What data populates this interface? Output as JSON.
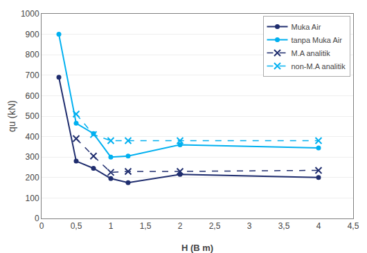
{
  "chart_data": {
    "type": "line",
    "xlabel": "H (B m)",
    "ylabel": "qu (kN)",
    "series": [
      {
        "name": "Muka Air",
        "color": "#1f2d6e",
        "line_style": "solid",
        "marker": "circle",
        "x": [
          0.25,
          0.5,
          0.75,
          1.0,
          1.25,
          2.0,
          4.0
        ],
        "values": [
          690,
          280,
          245,
          195,
          175,
          215,
          200
        ]
      },
      {
        "name": "tanpa Muka Air",
        "color": "#00b0f0",
        "line_style": "solid",
        "marker": "circle",
        "x": [
          0.25,
          0.5,
          0.75,
          1.0,
          1.25,
          2.0,
          4.0
        ],
        "values": [
          900,
          465,
          415,
          300,
          305,
          360,
          345
        ]
      },
      {
        "name": "M.A analitik",
        "color": "#1f2d6e",
        "line_style": "dashed",
        "marker": "x",
        "x": [
          0.5,
          0.75,
          1.0,
          1.25,
          2.0,
          4.0
        ],
        "values": [
          390,
          305,
          225,
          230,
          230,
          235
        ]
      },
      {
        "name": "non-M.A analitik",
        "color": "#00b0f0",
        "line_style": "dashed",
        "marker": "x",
        "x": [
          0.5,
          0.75,
          1.0,
          1.25,
          2.0,
          4.0
        ],
        "values": [
          510,
          410,
          380,
          380,
          380,
          380
        ]
      }
    ],
    "xlim": [
      0,
      4.5
    ],
    "ylim": [
      0,
      1000
    ],
    "xticks": [
      0,
      {
        "value": 0.5,
        "label": "0,5"
      },
      1,
      {
        "value": 1.5,
        "label": "1,5"
      },
      2,
      {
        "value": 2.5,
        "label": "2,5"
      },
      3,
      {
        "value": 3.5,
        "label": "3,5"
      },
      4,
      {
        "value": 4.5,
        "label": "4,5"
      }
    ],
    "yticks": [
      0,
      100,
      200,
      300,
      400,
      500,
      600,
      700,
      800,
      900,
      1000
    ],
    "grid": "y",
    "legend": "upper right"
  }
}
